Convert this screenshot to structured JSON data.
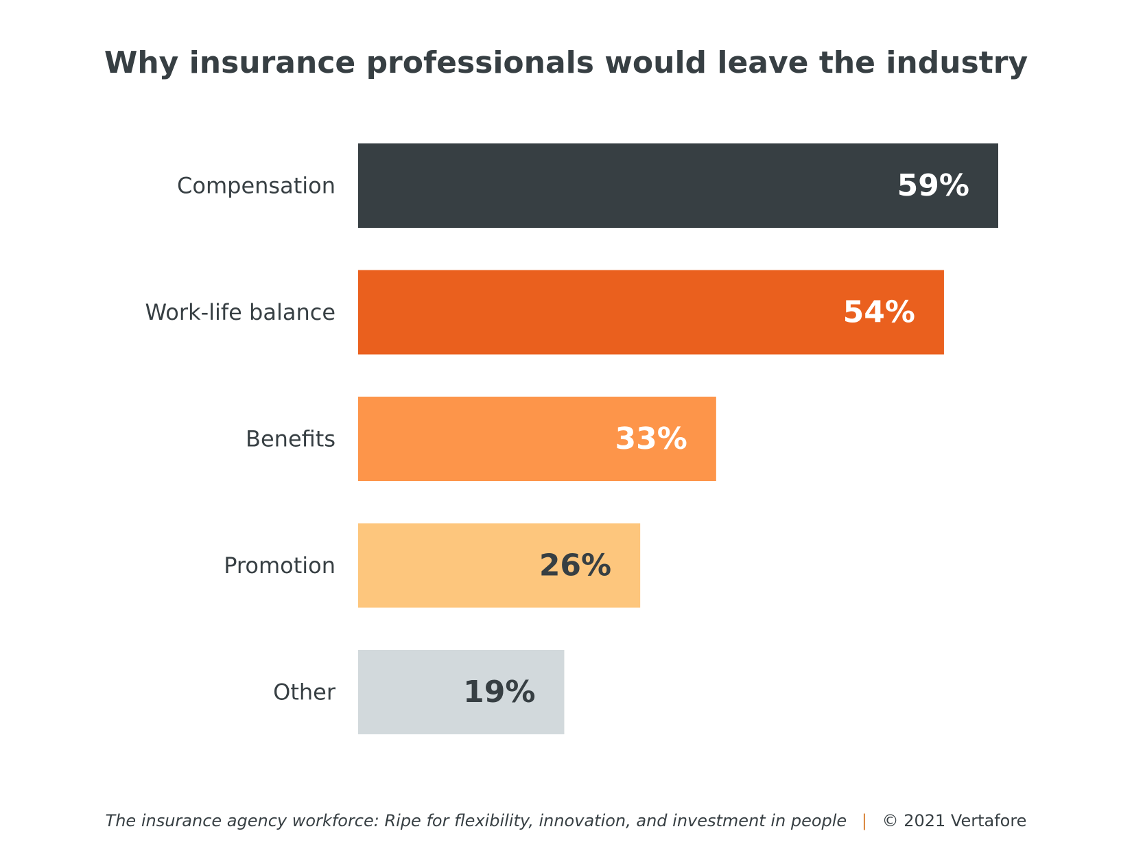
{
  "chart_data": {
    "type": "bar",
    "orientation": "horizontal",
    "title": "Why insurance professionals would leave the industry",
    "categories": [
      "Compensation",
      "Work-life balance",
      "Benefits",
      "Promotion",
      "Other"
    ],
    "values": [
      59,
      54,
      33,
      26,
      19
    ],
    "value_labels": [
      "59%",
      "54%",
      "33%",
      "26%",
      "19%"
    ],
    "unit": "%",
    "bar_colors": [
      "#373f43",
      "#ea601e",
      "#fd954a",
      "#fdc67d",
      "#d2d9dc"
    ],
    "label_colors": [
      "#ffffff",
      "#ffffff",
      "#ffffff",
      "#373f43",
      "#373f43"
    ],
    "xlim": [
      0,
      59
    ],
    "grid": false,
    "legend": "none"
  },
  "footer": {
    "source": "The insurance agency workforce: Ripe for flexibility, innovation, and investment in people",
    "separator": "|",
    "copyright": "© 2021 Vertafore"
  }
}
